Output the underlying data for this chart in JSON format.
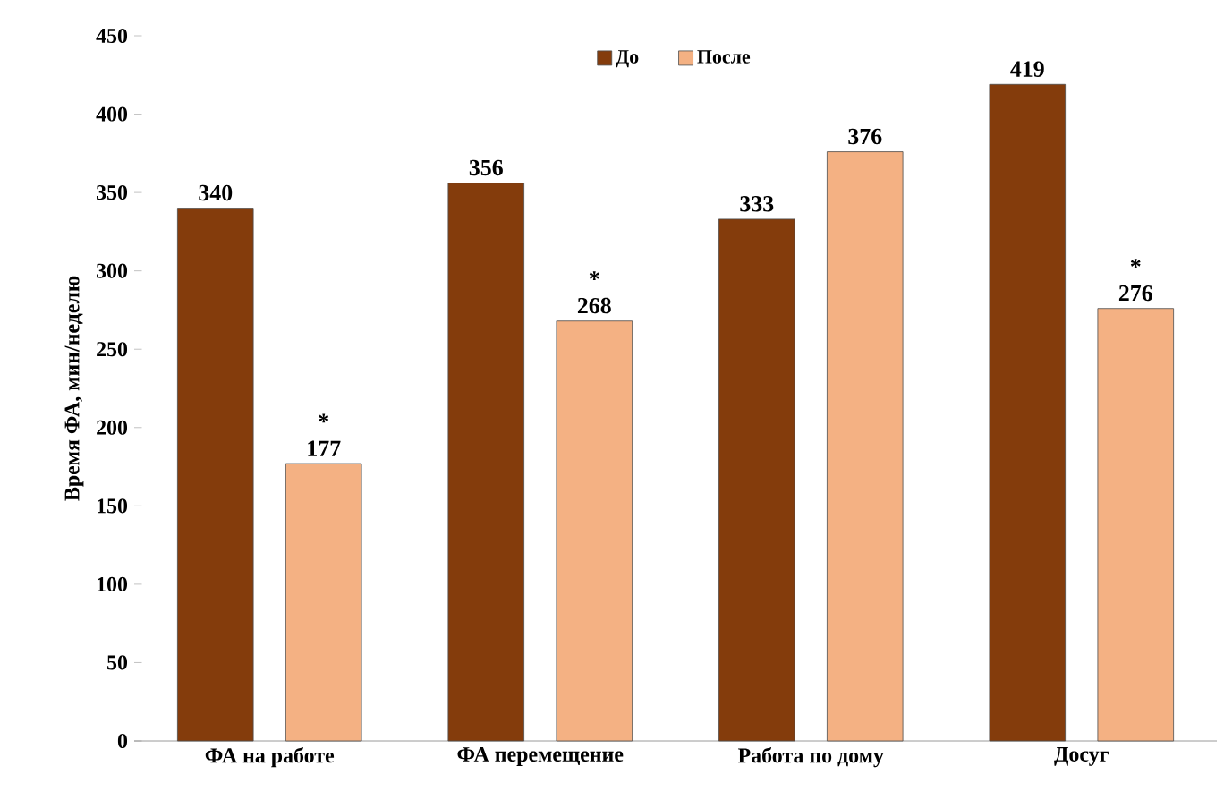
{
  "chart_data": {
    "type": "bar",
    "ylabel": "Время ФА, мин/неделю",
    "categories": [
      "ФА на работе",
      "ФА перемещение",
      "Работа по дому",
      "Досуг"
    ],
    "series": [
      {
        "name": "До",
        "color": "#843c0c",
        "values": [
          340,
          356,
          333,
          419
        ]
      },
      {
        "name": "После",
        "color": "#f4b183",
        "values": [
          177,
          268,
          376,
          276
        ]
      }
    ],
    "ylim": [
      0,
      450
    ],
    "yticks": [
      0,
      50,
      100,
      150,
      200,
      250,
      300,
      350,
      400,
      450
    ],
    "data_labels": true,
    "legend": "top",
    "grid": false,
    "annotations": [
      "*",
      "*",
      "*"
    ]
  }
}
